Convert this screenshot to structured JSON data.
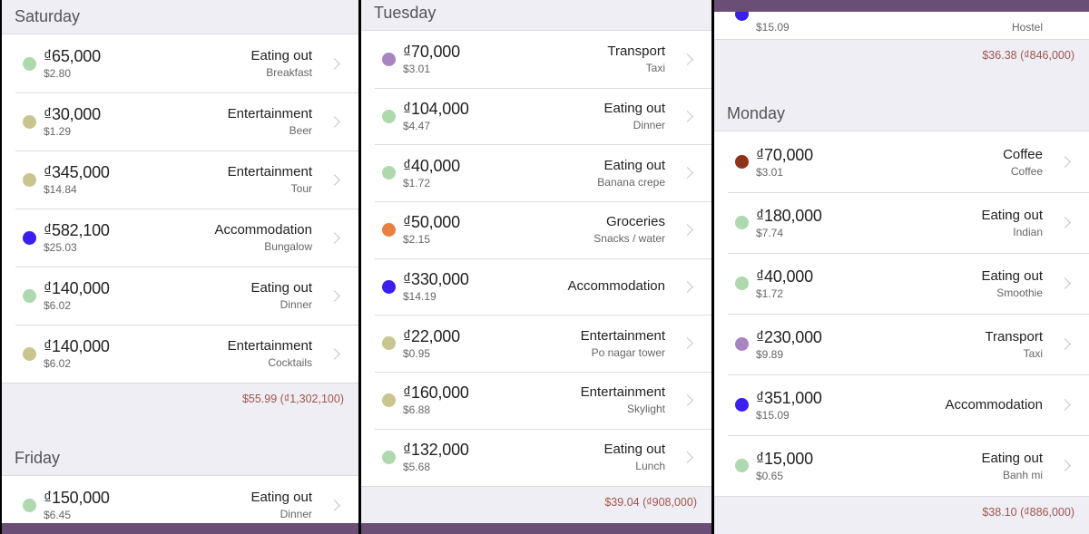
{
  "colors": {
    "eating_out": "#aed8ad",
    "entertainment": "#c8c58e",
    "accommodation": "#3a1ff0",
    "transport": "#a784c2",
    "groceries": "#e8813f",
    "coffee": "#8e3218",
    "total_text": "#a0564c",
    "nav_bar": "#6b4e76"
  },
  "panels": [
    {
      "sections": [
        {
          "day": "Saturday",
          "items": [
            {
              "amount": "₫65,000",
              "usd": "$2.80",
              "category": "Eating out",
              "note": "Breakfast",
              "color": "#aed8ad"
            },
            {
              "amount": "₫30,000",
              "usd": "$1.29",
              "category": "Entertainment",
              "note": "Beer",
              "color": "#c8c58e"
            },
            {
              "amount": "₫345,000",
              "usd": "$14.84",
              "category": "Entertainment",
              "note": "Tour",
              "color": "#c8c58e"
            },
            {
              "amount": "₫582,100",
              "usd": "$25.03",
              "category": "Accommodation",
              "note": "Bungalow",
              "color": "#3a1ff0"
            },
            {
              "amount": "₫140,000",
              "usd": "$6.02",
              "category": "Eating out",
              "note": "Dinner",
              "color": "#aed8ad"
            },
            {
              "amount": "₫140,000",
              "usd": "$6.02",
              "category": "Entertainment",
              "note": "Cocktails",
              "color": "#c8c58e"
            }
          ],
          "total": "$55.99 (₫1,302,100)"
        },
        {
          "day": "Friday",
          "items": [
            {
              "amount": "₫150,000",
              "usd": "$6.45",
              "category": "Eating out",
              "note": "Dinner",
              "color": "#aed8ad"
            }
          ]
        }
      ]
    },
    {
      "sections": [
        {
          "day": "Tuesday",
          "items": [
            {
              "amount": "₫70,000",
              "usd": "$3.01",
              "category": "Transport",
              "note": "Taxi",
              "color": "#a784c2"
            },
            {
              "amount": "₫104,000",
              "usd": "$4.47",
              "category": "Eating out",
              "note": "Dinner",
              "color": "#aed8ad"
            },
            {
              "amount": "₫40,000",
              "usd": "$1.72",
              "category": "Eating out",
              "note": "Banana crepe",
              "color": "#aed8ad"
            },
            {
              "amount": "₫50,000",
              "usd": "$2.15",
              "category": "Groceries",
              "note": "Snacks / water",
              "color": "#e8813f"
            },
            {
              "amount": "₫330,000",
              "usd": "$14.19",
              "category": "Accommodation",
              "note": "",
              "color": "#3a1ff0"
            },
            {
              "amount": "₫22,000",
              "usd": "$0.95",
              "category": "Entertainment",
              "note": "Po nagar tower",
              "color": "#c8c58e"
            },
            {
              "amount": "₫160,000",
              "usd": "$6.88",
              "category": "Entertainment",
              "note": "Skylight",
              "color": "#c8c58e"
            },
            {
              "amount": "₫132,000",
              "usd": "$5.68",
              "category": "Eating out",
              "note": "Lunch",
              "color": "#aed8ad"
            }
          ],
          "total": "$39.04 (₫908,000)"
        }
      ]
    },
    {
      "partial_top": {
        "usd": "$15.09",
        "note": "Hostel",
        "color": "#3a1ff0",
        "total": "$36.38 (₫846,000)"
      },
      "sections": [
        {
          "day": "Monday",
          "items": [
            {
              "amount": "₫70,000",
              "usd": "$3.01",
              "category": "Coffee",
              "note": "Coffee",
              "color": "#8e3218"
            },
            {
              "amount": "₫180,000",
              "usd": "$7.74",
              "category": "Eating out",
              "note": "Indian",
              "color": "#aed8ad"
            },
            {
              "amount": "₫40,000",
              "usd": "$1.72",
              "category": "Eating out",
              "note": "Smoothie",
              "color": "#aed8ad"
            },
            {
              "amount": "₫230,000",
              "usd": "$9.89",
              "category": "Transport",
              "note": "Taxi",
              "color": "#a784c2"
            },
            {
              "amount": "₫351,000",
              "usd": "$15.09",
              "category": "Accommodation",
              "note": "",
              "color": "#3a1ff0"
            },
            {
              "amount": "₫15,000",
              "usd": "$0.65",
              "category": "Eating out",
              "note": "Banh mi",
              "color": "#aed8ad"
            }
          ],
          "total": "$38.10 (₫886,000)"
        }
      ]
    }
  ]
}
